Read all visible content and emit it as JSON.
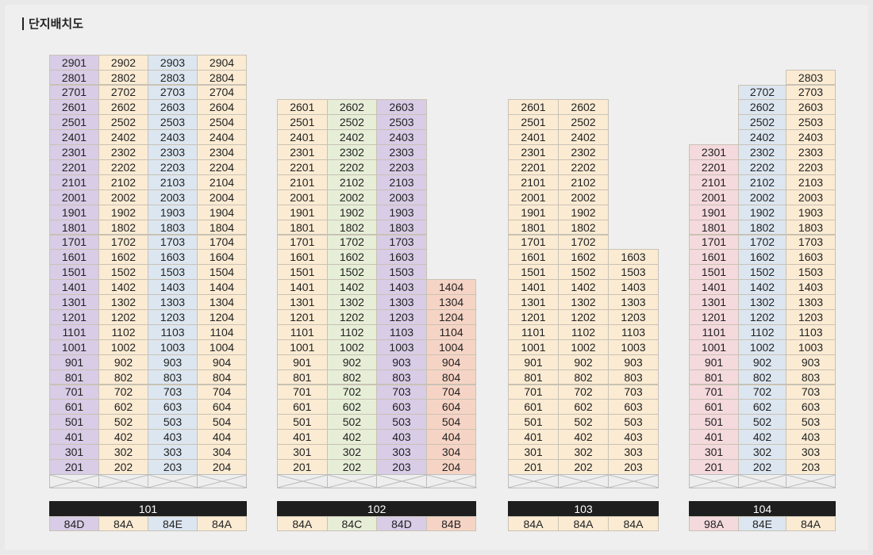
{
  "page": {
    "title": "단지배치도"
  },
  "colors": {
    "84A": "#fbebd3",
    "84B": "#f6d4c5",
    "84C": "#e6eed7",
    "84D": "#d8cce6",
    "84E": "#dce6f0",
    "98A": "#f4d9dd"
  },
  "buildings": [
    {
      "name": "101",
      "lines": [
        {
          "line": "01",
          "type": "84D",
          "min_floor": 2,
          "max_floor": 29
        },
        {
          "line": "02",
          "type": "84A",
          "min_floor": 2,
          "max_floor": 29
        },
        {
          "line": "03",
          "type": "84E",
          "min_floor": 2,
          "max_floor": 29
        },
        {
          "line": "04",
          "type": "84A",
          "min_floor": 2,
          "max_floor": 29
        }
      ]
    },
    {
      "name": "102",
      "lines": [
        {
          "line": "01",
          "type": "84A",
          "min_floor": 2,
          "max_floor": 26
        },
        {
          "line": "02",
          "type": "84C",
          "min_floor": 2,
          "max_floor": 26
        },
        {
          "line": "03",
          "type": "84D",
          "min_floor": 2,
          "max_floor": 26
        },
        {
          "line": "04",
          "type": "84B",
          "min_floor": 2,
          "max_floor": 14
        }
      ]
    },
    {
      "name": "103",
      "lines": [
        {
          "line": "01",
          "type": "84A",
          "min_floor": 2,
          "max_floor": 26
        },
        {
          "line": "02",
          "type": "84A",
          "min_floor": 2,
          "max_floor": 26
        },
        {
          "line": "03",
          "type": "84A",
          "min_floor": 2,
          "max_floor": 16
        }
      ]
    },
    {
      "name": "104",
      "lines": [
        {
          "line": "01",
          "type": "98A",
          "min_floor": 2,
          "max_floor": 23
        },
        {
          "line": "02",
          "type": "84E",
          "min_floor": 2,
          "max_floor": 27
        },
        {
          "line": "03",
          "type": "84A",
          "min_floor": 2,
          "max_floor": 28
        }
      ]
    }
  ]
}
